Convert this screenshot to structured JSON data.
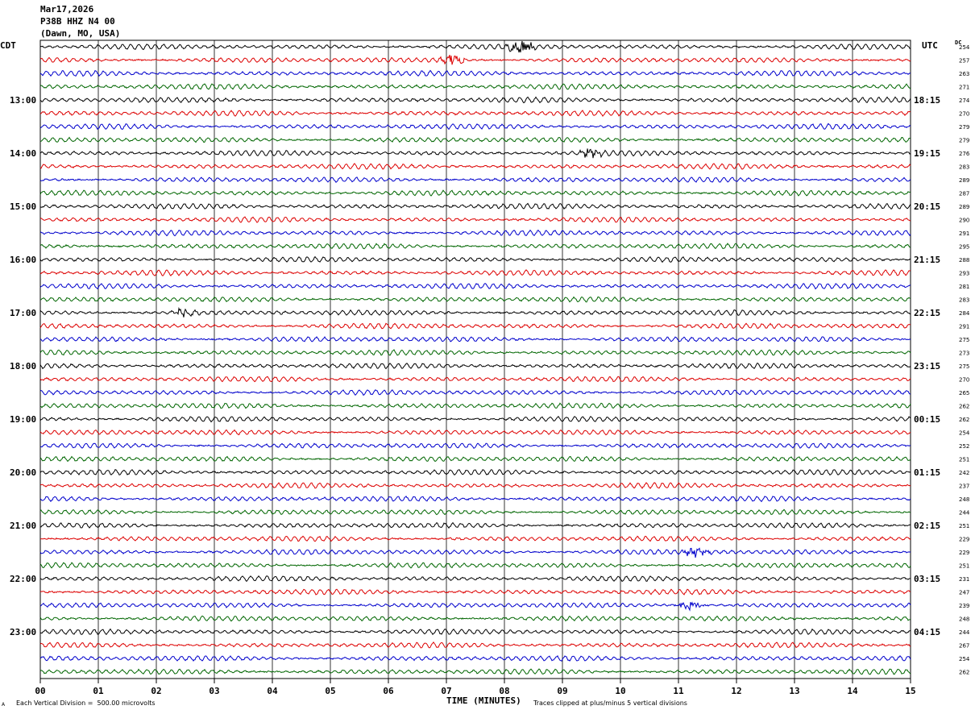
{
  "header": {
    "date": "Mar17,2026",
    "station": "P38B HHZ N4 00",
    "location": "(Dawn, MO, USA)"
  },
  "corner_labels": {
    "left_zone": "CDT",
    "right_zone": "UTC",
    "dc": "DC"
  },
  "footer": {
    "scale_note": "Each Vertical Division =  500.00 microvolts",
    "clip_note": "Traces clipped at plus/minus 5 vertical divisions",
    "mark": "A"
  },
  "chart_data": {
    "type": "helicorder",
    "title": "",
    "xlabel": "TIME (MINUTES)",
    "x_ticks": [
      "00",
      "01",
      "02",
      "03",
      "04",
      "05",
      "06",
      "07",
      "08",
      "09",
      "10",
      "11",
      "12",
      "13",
      "14",
      "15"
    ],
    "xlim": [
      0,
      15
    ],
    "grid": true,
    "trace_colors": [
      "#000000",
      "#dd0000",
      "#0000cc",
      "#006600"
    ],
    "rows_per_hour": 4,
    "rows": 48,
    "left_hour_labels": [
      "13:00",
      "14:00",
      "15:00",
      "16:00",
      "17:00",
      "18:00",
      "19:00",
      "20:00",
      "21:00",
      "22:00",
      "23:00"
    ],
    "right_hour_labels": [
      "18:15",
      "19:15",
      "20:15",
      "21:15",
      "22:15",
      "23:15",
      "00:15",
      "01:15",
      "02:15",
      "03:15",
      "04:15"
    ],
    "dc_offsets": [
      254,
      257,
      263,
      271,
      274,
      270,
      279,
      279,
      276,
      283,
      289,
      287,
      289,
      290,
      291,
      295,
      288,
      293,
      281,
      283,
      284,
      291,
      275,
      273,
      275,
      270,
      265,
      262,
      262,
      254,
      252,
      251,
      242,
      237,
      248,
      244,
      251,
      229,
      229,
      251,
      231,
      247,
      239,
      248,
      244,
      267,
      254,
      262
    ],
    "events": [
      {
        "row": 0,
        "minute": 8.3,
        "amp": 2.6
      },
      {
        "row": 1,
        "minute": 7.1,
        "amp": 2.0
      },
      {
        "row": 8,
        "minute": 9.5,
        "amp": 1.5
      },
      {
        "row": 20,
        "minute": 2.5,
        "amp": 1.5
      },
      {
        "row": 38,
        "minute": 11.3,
        "amp": 1.9
      },
      {
        "row": 42,
        "minute": 11.2,
        "amp": 1.6
      }
    ]
  }
}
